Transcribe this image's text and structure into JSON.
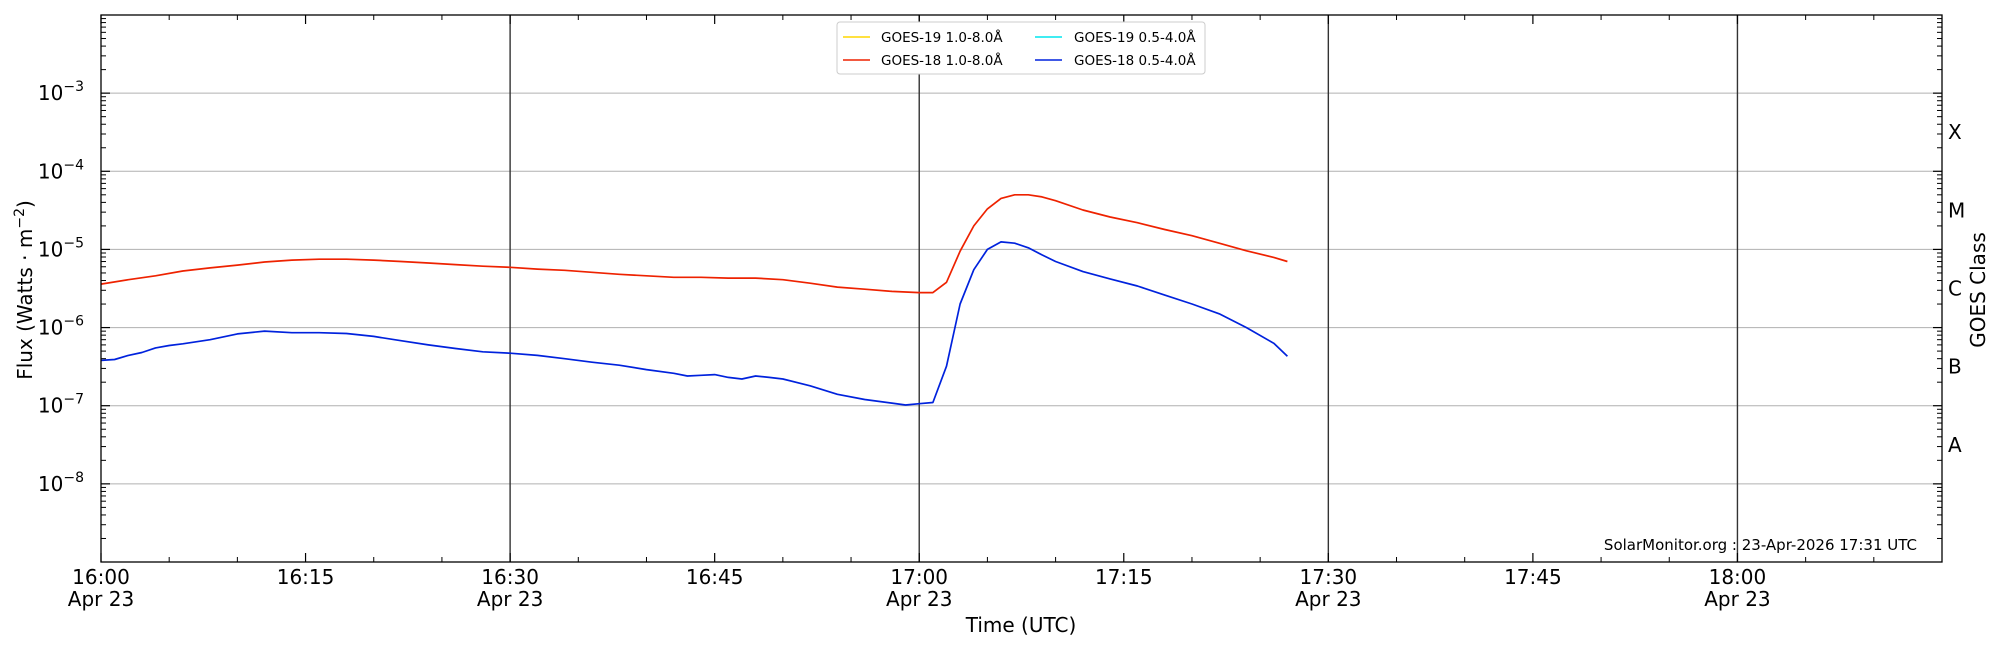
{
  "chart_data": {
    "type": "line",
    "ylabel_main": "Flux (Watts · m",
    "ylabel_exp": "−2",
    "ylabel_close": ")",
    "xlabel": "Time (UTC)",
    "y_right_label": "GOES Class",
    "y_scale": "log",
    "ylim": [
      1e-09,
      0.01
    ],
    "x_range": [
      "16:00",
      "18:15"
    ],
    "date": "Apr 23",
    "x_ticks": [
      {
        "time": "16:00",
        "label": "16:00",
        "date": "Apr 23",
        "vline": false
      },
      {
        "time": "16:15",
        "label": "16:15",
        "date": "",
        "vline": false
      },
      {
        "time": "16:30",
        "label": "16:30",
        "date": "Apr 23",
        "vline": true
      },
      {
        "time": "16:45",
        "label": "16:45",
        "date": "",
        "vline": false
      },
      {
        "time": "17:00",
        "label": "17:00",
        "date": "Apr 23",
        "vline": true
      },
      {
        "time": "17:15",
        "label": "17:15",
        "date": "",
        "vline": false
      },
      {
        "time": "17:30",
        "label": "17:30",
        "date": "Apr 23",
        "vline": true
      },
      {
        "time": "17:45",
        "label": "17:45",
        "date": "",
        "vline": false
      },
      {
        "time": "18:00",
        "label": "18:00",
        "date": "Apr 23",
        "vline": true
      }
    ],
    "y_ticks": [
      {
        "value": 1e-08,
        "base": "10",
        "exp": "−8"
      },
      {
        "value": 1e-07,
        "base": "10",
        "exp": "−7"
      },
      {
        "value": 1e-06,
        "base": "10",
        "exp": "−6"
      },
      {
        "value": 1e-05,
        "base": "10",
        "exp": "−5"
      },
      {
        "value": 0.0001,
        "base": "10",
        "exp": "−4"
      },
      {
        "value": 0.001,
        "base": "10",
        "exp": "−3"
      }
    ],
    "goes_classes": [
      {
        "label": "A",
        "value": 3.16e-08
      },
      {
        "label": "B",
        "value": 3.16e-07
      },
      {
        "label": "C",
        "value": 3.16e-06
      },
      {
        "label": "M",
        "value": 3.16e-05
      },
      {
        "label": "X",
        "value": 0.000316
      }
    ],
    "grid": true,
    "legend_position": "top-center",
    "legend": [
      {
        "name": "GOES-19 1.0-8.0Å",
        "color": "#ffd700"
      },
      {
        "name": "GOES-19 0.5-4.0Å",
        "color": "#00e5ee"
      },
      {
        "name": "GOES-18 1.0-8.0Å",
        "color": "#ee2200"
      },
      {
        "name": "GOES-18 0.5-4.0Å",
        "color": "#0022dd"
      }
    ],
    "series": [
      {
        "name": "GOES-18 1.0-8.0Å",
        "color": "#ee2200",
        "x": [
          "16:00",
          "16:02",
          "16:04",
          "16:06",
          "16:08",
          "16:10",
          "16:12",
          "16:14",
          "16:16",
          "16:18",
          "16:20",
          "16:22",
          "16:24",
          "16:26",
          "16:28",
          "16:30",
          "16:32",
          "16:34",
          "16:36",
          "16:38",
          "16:40",
          "16:42",
          "16:44",
          "16:46",
          "16:48",
          "16:50",
          "16:52",
          "16:54",
          "16:56",
          "16:58",
          "17:00",
          "17:01",
          "17:02",
          "17:03",
          "17:04",
          "17:05",
          "17:06",
          "17:07",
          "17:08",
          "17:09",
          "17:10",
          "17:12",
          "17:14",
          "17:16",
          "17:18",
          "17:20",
          "17:22",
          "17:24",
          "17:26",
          "17:27"
        ],
        "y": [
          3.6e-06,
          4.1e-06,
          4.6e-06,
          5.3e-06,
          5.8e-06,
          6.3e-06,
          6.9e-06,
          7.3e-06,
          7.5e-06,
          7.5e-06,
          7.3e-06,
          7e-06,
          6.7e-06,
          6.4e-06,
          6.1e-06,
          5.9e-06,
          5.6e-06,
          5.4e-06,
          5.1e-06,
          4.8e-06,
          4.6e-06,
          4.4e-06,
          4.4e-06,
          4.3e-06,
          4.3e-06,
          4.1e-06,
          3.7e-06,
          3.3e-06,
          3.1e-06,
          2.9e-06,
          2.8e-06,
          2.8e-06,
          3.8e-06,
          9.5e-06,
          2e-05,
          3.3e-05,
          4.5e-05,
          5e-05,
          5e-05,
          4.7e-05,
          4.2e-05,
          3.2e-05,
          2.6e-05,
          2.2e-05,
          1.8e-05,
          1.5e-05,
          1.2e-05,
          9.6e-06,
          7.9e-06,
          7e-06
        ]
      },
      {
        "name": "GOES-18 0.5-4.0Å",
        "color": "#0022dd",
        "x": [
          "16:00",
          "16:01",
          "16:02",
          "16:03",
          "16:04",
          "16:05",
          "16:06",
          "16:08",
          "16:10",
          "16:12",
          "16:14",
          "16:16",
          "16:18",
          "16:20",
          "16:22",
          "16:24",
          "16:26",
          "16:28",
          "16:30",
          "16:32",
          "16:34",
          "16:36",
          "16:38",
          "16:40",
          "16:42",
          "16:43",
          "16:44",
          "16:45",
          "16:46",
          "16:47",
          "16:48",
          "16:49",
          "16:50",
          "16:52",
          "16:54",
          "16:56",
          "16:58",
          "16:59",
          "17:00",
          "17:01",
          "17:02",
          "17:03",
          "17:04",
          "17:05",
          "17:06",
          "17:07",
          "17:08",
          "17:09",
          "17:10",
          "17:12",
          "17:14",
          "17:16",
          "17:18",
          "17:20",
          "17:22",
          "17:24",
          "17:26",
          "17:27"
        ],
        "y": [
          3.8e-07,
          3.9e-07,
          4.4e-07,
          4.8e-07,
          5.5e-07,
          5.9e-07,
          6.2e-07,
          7e-07,
          8.3e-07,
          9e-07,
          8.6e-07,
          8.6e-07,
          8.4e-07,
          7.7e-07,
          6.8e-07,
          6e-07,
          5.4e-07,
          4.9e-07,
          4.7e-07,
          4.4e-07,
          4e-07,
          3.6e-07,
          3.3e-07,
          2.9e-07,
          2.6e-07,
          2.4e-07,
          2.45e-07,
          2.5e-07,
          2.3e-07,
          2.2e-07,
          2.4e-07,
          2.3e-07,
          2.2e-07,
          1.8e-07,
          1.4e-07,
          1.2e-07,
          1.08e-07,
          1.02e-07,
          1.06e-07,
          1.1e-07,
          3.2e-07,
          2e-06,
          5.5e-06,
          1e-05,
          1.25e-05,
          1.2e-05,
          1.05e-05,
          8.5e-06,
          7e-06,
          5.2e-06,
          4.2e-06,
          3.4e-06,
          2.6e-06,
          2e-06,
          1.5e-06,
          1e-06,
          6.3e-07,
          4.3e-07
        ]
      }
    ]
  },
  "credit": "SolarMonitor.org : 23-Apr-2026 17:31 UTC"
}
